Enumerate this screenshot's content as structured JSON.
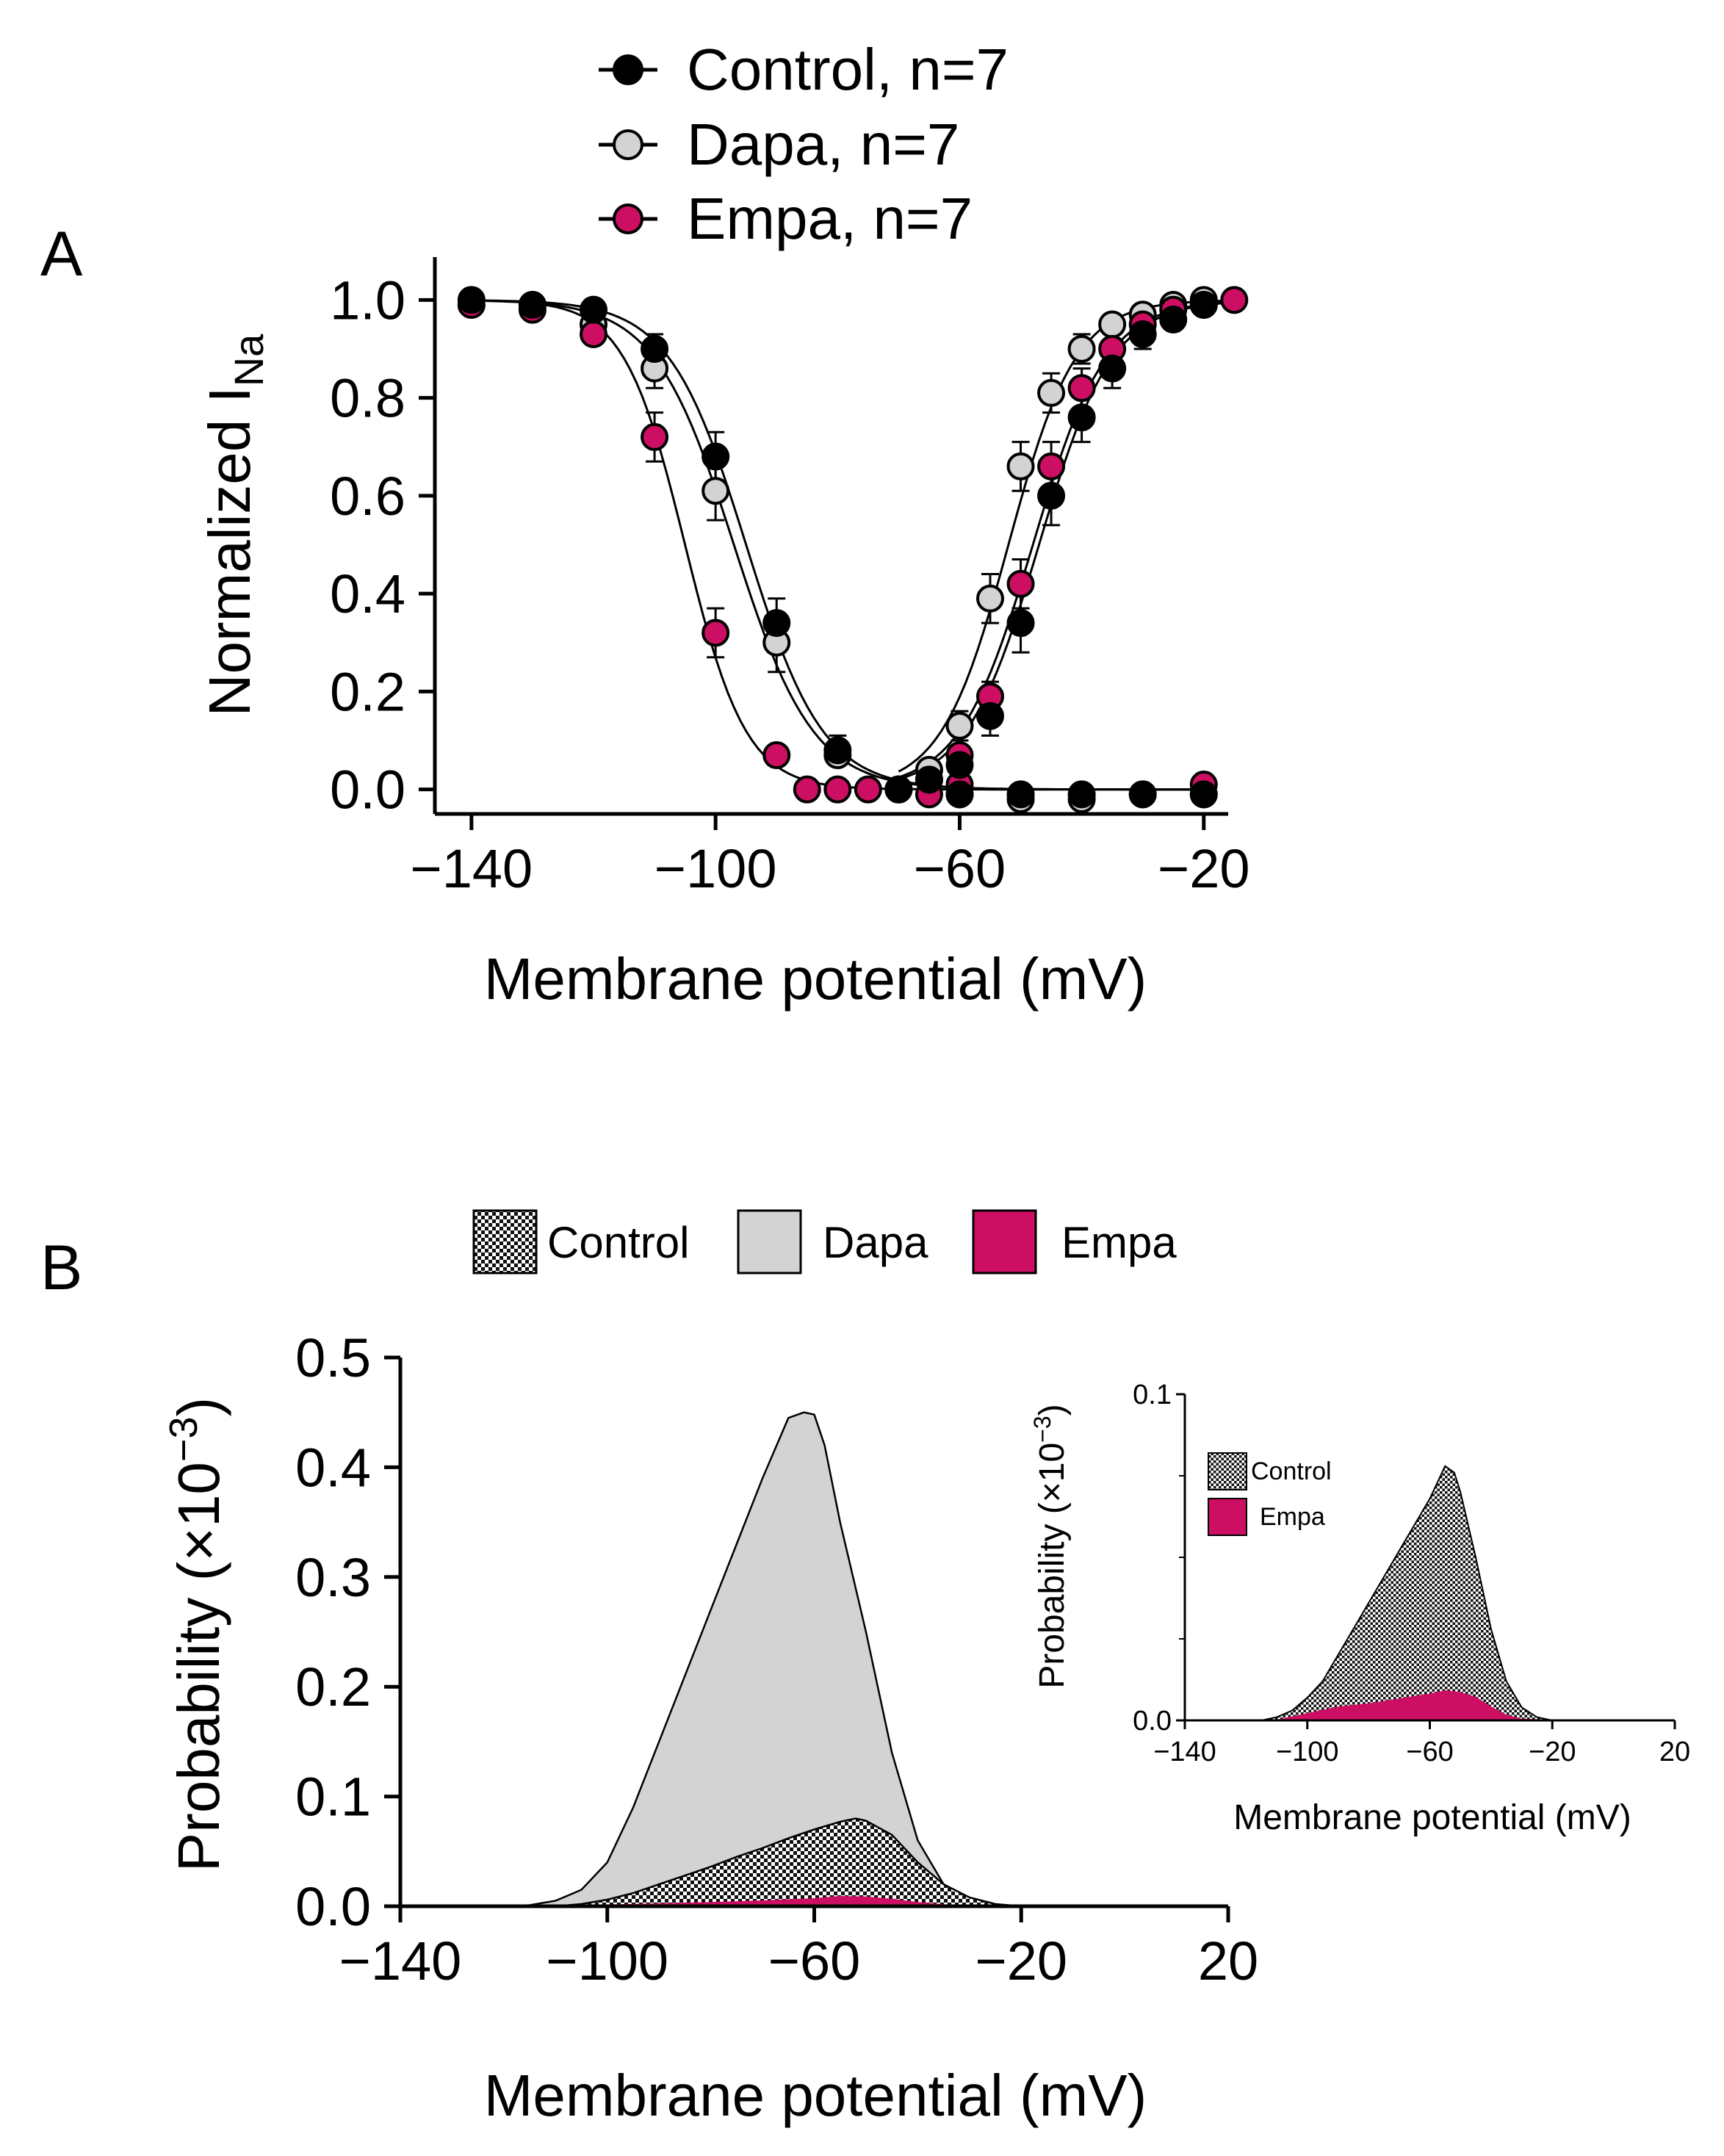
{
  "colors": {
    "control": "#000000",
    "dapa": "#d3d3d3",
    "empa": "#cc0f63",
    "axis": "#000000"
  },
  "chart_data": [
    {
      "id": "A",
      "panel_label": "A",
      "type": "scatter",
      "title": "",
      "xlabel": "Membrane potential (mV)",
      "ylabel_main": "Normalized I",
      "ylabel_sub": "Na",
      "xlim": [
        -146,
        -16
      ],
      "ylim": [
        -0.05,
        1.05
      ],
      "xticks": [
        -140,
        -100,
        -60,
        -20
      ],
      "xtick_labels": [
        "−140",
        "−100",
        "−60",
        "−20"
      ],
      "yticks": [
        0,
        0.2,
        0.4,
        0.6,
        0.8,
        1.0
      ],
      "ytick_labels": [
        "0.0",
        "0.2",
        "0.4",
        "0.6",
        "0.8",
        "1.0"
      ],
      "legend": [
        {
          "key": "control",
          "label": "Control, n=7"
        },
        {
          "key": "dapa",
          "label": "Dapa, n=7"
        },
        {
          "key": "empa",
          "label": "Empa, n=7"
        }
      ],
      "series": [
        {
          "name": "Control",
          "key": "control",
          "inactivation": {
            "x": [
              -140,
              -130,
              -120,
              -110,
              -100,
              -90,
              -80,
              -70,
              -60,
              -50,
              -40,
              -30,
              -20
            ],
            "y": [
              1.0,
              0.99,
              0.98,
              0.9,
              0.68,
              0.34,
              0.08,
              0.0,
              -0.01,
              -0.01,
              -0.01,
              -0.01,
              -0.01
            ],
            "err": [
              0.01,
              0.01,
              0.02,
              0.03,
              0.05,
              0.05,
              0.03,
              0.01,
              0.01,
              0.01,
              0.01,
              0.01,
              0.01
            ]
          },
          "activation": {
            "x": [
              -65,
              -60,
              -55,
              -50,
              -45,
              -40,
              -35,
              -30,
              -25,
              -20
            ],
            "y": [
              0.02,
              0.05,
              0.15,
              0.34,
              0.6,
              0.76,
              0.86,
              0.93,
              0.96,
              0.99
            ],
            "err": [
              0.01,
              0.02,
              0.04,
              0.06,
              0.06,
              0.05,
              0.04,
              0.03,
              0.02,
              0.01
            ]
          }
        },
        {
          "name": "Dapa",
          "key": "dapa",
          "inactivation": {
            "x": [
              -140,
              -130,
              -120,
              -110,
              -100,
              -90,
              -80,
              -70,
              -60,
              -50,
              -40,
              -30,
              -20
            ],
            "y": [
              0.99,
              0.99,
              0.95,
              0.86,
              0.61,
              0.3,
              0.07,
              0.0,
              -0.01,
              -0.02,
              -0.02,
              -0.01,
              -0.01
            ],
            "err": [
              0.01,
              0.01,
              0.02,
              0.04,
              0.06,
              0.06,
              0.02,
              0.01,
              0.01,
              0.01,
              0.01,
              0.01,
              0.01
            ]
          },
          "activation": {
            "x": [
              -65,
              -60,
              -55,
              -50,
              -45,
              -40,
              -35,
              -30,
              -25,
              -20
            ],
            "y": [
              0.04,
              0.13,
              0.39,
              0.66,
              0.81,
              0.9,
              0.95,
              0.97,
              0.99,
              1.0
            ],
            "err": [
              0.01,
              0.03,
              0.05,
              0.05,
              0.04,
              0.03,
              0.02,
              0.01,
              0.01,
              0.01
            ]
          }
        },
        {
          "name": "Empa",
          "key": "empa",
          "inactivation": {
            "x": [
              -140,
              -130,
              -120,
              -110,
              -100,
              -90,
              -85,
              -80,
              -75,
              -70,
              -65,
              -60,
              -20
            ],
            "y": [
              0.99,
              0.98,
              0.93,
              0.72,
              0.32,
              0.07,
              0.0,
              0.0,
              0.0,
              0.0,
              -0.01,
              0.01,
              0.01
            ],
            "err": [
              0.01,
              0.01,
              0.02,
              0.05,
              0.05,
              0.02,
              0.01,
              0.01,
              0.01,
              0.01,
              0.01,
              0.01,
              0.01
            ]
          },
          "activation": {
            "x": [
              -65,
              -60,
              -55,
              -50,
              -45,
              -40,
              -35,
              -30,
              -25,
              -20,
              -15
            ],
            "y": [
              0.02,
              0.07,
              0.19,
              0.42,
              0.66,
              0.82,
              0.9,
              0.95,
              0.98,
              0.99,
              1.0
            ],
            "err": [
              0.01,
              0.02,
              0.03,
              0.05,
              0.05,
              0.04,
              0.03,
              0.02,
              0.01,
              0.01,
              0.01
            ]
          }
        }
      ],
      "fits": {
        "control": {
          "inact_v_half": -95,
          "inact_k": 6.3,
          "act_v_half": -47,
          "act_k": 6.0
        },
        "dapa": {
          "inact_v_half": -97,
          "inact_k": 6.5,
          "act_v_half": -52,
          "act_k": 5.5
        },
        "empa": {
          "inact_v_half": -105,
          "inact_k": 5.0,
          "act_v_half": -48,
          "act_k": 6.0
        }
      }
    },
    {
      "id": "B",
      "panel_label": "B",
      "type": "area",
      "title": "",
      "xlabel": "Membrane potential (mV)",
      "ylabel_main": "Probability (×10",
      "ylabel_exp": "−3",
      "ylabel_close": ")",
      "xlim": [
        -140,
        20
      ],
      "ylim": [
        0,
        0.5
      ],
      "xticks": [
        -140,
        -100,
        -60,
        -20,
        20
      ],
      "xtick_labels": [
        "−140",
        "−100",
        "−60",
        "−20",
        "20"
      ],
      "yticks": [
        0,
        0.1,
        0.2,
        0.3,
        0.4,
        0.5
      ],
      "ytick_labels": [
        "0.0",
        "0.1",
        "0.2",
        "0.3",
        "0.4",
        "0.5"
      ],
      "legend": [
        {
          "key": "control",
          "label": "Control"
        },
        {
          "key": "dapa",
          "label": "Dapa"
        },
        {
          "key": "empa",
          "label": "Empa"
        }
      ],
      "series": [
        {
          "name": "Dapa",
          "key": "dapa",
          "x": [
            -140,
            -120,
            -115,
            -110,
            -105,
            -100,
            -95,
            -90,
            -85,
            -80,
            -75,
            -70,
            -65,
            -62,
            -60,
            -58,
            -55,
            -50,
            -45,
            -40,
            -35,
            -30,
            -25,
            -20,
            20
          ],
          "values": [
            0,
            0,
            0.001,
            0.005,
            0.015,
            0.04,
            0.09,
            0.15,
            0.21,
            0.27,
            0.33,
            0.39,
            0.445,
            0.45,
            0.448,
            0.42,
            0.35,
            0.25,
            0.14,
            0.06,
            0.02,
            0.006,
            0.001,
            0,
            0
          ]
        },
        {
          "name": "Control",
          "key": "control",
          "x": [
            -140,
            -110,
            -105,
            -100,
            -95,
            -90,
            -85,
            -80,
            -75,
            -70,
            -65,
            -60,
            -55,
            -52,
            -50,
            -45,
            -40,
            -35,
            -30,
            -25,
            -20,
            20
          ],
          "values": [
            0,
            0,
            0.002,
            0.006,
            0.012,
            0.02,
            0.028,
            0.036,
            0.045,
            0.053,
            0.062,
            0.07,
            0.077,
            0.08,
            0.078,
            0.065,
            0.04,
            0.02,
            0.008,
            0.002,
            0,
            0
          ]
        },
        {
          "name": "Empa",
          "key": "empa",
          "x": [
            -140,
            -110,
            -100,
            -90,
            -80,
            -70,
            -60,
            -55,
            -50,
            -45,
            -40,
            -35,
            -30,
            -20,
            20
          ],
          "values": [
            0,
            0,
            0.0008,
            0.0018,
            0.003,
            0.0045,
            0.0065,
            0.0085,
            0.008,
            0.006,
            0.003,
            0.001,
            0.0003,
            0,
            0
          ]
        }
      ]
    },
    {
      "id": "B-inset",
      "type": "area",
      "title": "",
      "xlabel": "Membrane potential (mV)",
      "ylabel_main": "Probability (×10",
      "ylabel_exp": "−3",
      "ylabel_close": ")",
      "xlim": [
        -140,
        20
      ],
      "ylim": [
        0,
        0.1
      ],
      "xticks": [
        -140,
        -100,
        -60,
        -20,
        20
      ],
      "xtick_labels": [
        "−140",
        "−100",
        "−60",
        "−20",
        "20"
      ],
      "yticks": [
        0,
        0.1
      ],
      "ytick_labels": [
        "0.0",
        "0.1"
      ],
      "legend": [
        {
          "key": "control",
          "label": "Control"
        },
        {
          "key": "empa",
          "label": "Empa"
        }
      ],
      "series": [
        {
          "name": "Control",
          "key": "control",
          "x": [
            -140,
            -115,
            -110,
            -105,
            -100,
            -95,
            -90,
            -85,
            -80,
            -75,
            -70,
            -65,
            -60,
            -57,
            -55,
            -52,
            -50,
            -45,
            -40,
            -35,
            -30,
            -25,
            -20,
            20
          ],
          "values": [
            0,
            0,
            0.001,
            0.003,
            0.007,
            0.012,
            0.02,
            0.028,
            0.036,
            0.044,
            0.052,
            0.06,
            0.068,
            0.074,
            0.078,
            0.076,
            0.07,
            0.05,
            0.028,
            0.012,
            0.004,
            0.001,
            0,
            0
          ]
        },
        {
          "name": "Empa",
          "key": "empa",
          "x": [
            -140,
            -110,
            -105,
            -100,
            -90,
            -80,
            -70,
            -60,
            -55,
            -50,
            -45,
            -40,
            -35,
            -30,
            -20,
            20
          ],
          "values": [
            0,
            0,
            0.001,
            0.002,
            0.004,
            0.005,
            0.0065,
            0.008,
            0.009,
            0.0085,
            0.007,
            0.004,
            0.0015,
            0.0003,
            0,
            0
          ]
        }
      ]
    }
  ]
}
